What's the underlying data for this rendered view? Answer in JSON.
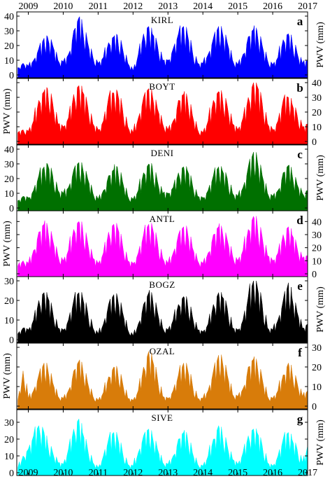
{
  "chart_data": {
    "type": "area",
    "x_range": [
      2009,
      2017
    ],
    "years": [
      "2009",
      "2010",
      "2011",
      "2012",
      "2013",
      "2014",
      "2015",
      "2016",
      "2017"
    ],
    "ylabel": "PWV (mm)",
    "panels": [
      {
        "letter": "a",
        "station": "KIRL",
        "color": "#0000ff",
        "ylim": [
          0,
          40
        ],
        "yticks": [
          0,
          10,
          20,
          30,
          40
        ],
        "ylabel_side": "right",
        "x": [
          2008.7,
          2008.85,
          2009.0,
          2009.15,
          2009.3,
          2009.45,
          2009.55,
          2009.7,
          2009.85,
          2010.0,
          2010.15,
          2010.3,
          2010.45,
          2010.55,
          2010.7,
          2010.85,
          2011.0,
          2011.15,
          2011.3,
          2011.45,
          2011.55,
          2011.7,
          2011.85,
          2012.0,
          2012.15,
          2012.3,
          2012.45,
          2012.55,
          2012.7,
          2012.85,
          2013.0,
          2013.15,
          2013.3,
          2013.45,
          2013.55,
          2013.7,
          2013.85,
          2014.0,
          2014.15,
          2014.3,
          2014.45,
          2014.55,
          2014.7,
          2014.85,
          2015.0,
          2015.15,
          2015.3,
          2015.45,
          2015.55,
          2015.7,
          2015.85,
          2016.0,
          2016.15,
          2016.3,
          2016.45,
          2016.55,
          2016.7,
          2016.85,
          2017.0
        ],
        "y": [
          5,
          8,
          6,
          10,
          18,
          25,
          26,
          20,
          10,
          9,
          14,
          30,
          39,
          33,
          22,
          12,
          8,
          12,
          22,
          26,
          27,
          18,
          8,
          3,
          14,
          28,
          33,
          28,
          20,
          10,
          10,
          18,
          28,
          33,
          29,
          16,
          8,
          8,
          14,
          25,
          33,
          30,
          22,
          10,
          7,
          14,
          26,
          31,
          30,
          20,
          10,
          7,
          12,
          24,
          28,
          24,
          15,
          8,
          10
        ]
      },
      {
        "letter": "b",
        "station": "BOYT",
        "color": "#ff0000",
        "ylim": [
          0,
          40
        ],
        "yticks": [
          0,
          10,
          20,
          30,
          40
        ],
        "ylabel_side": "left",
        "x": [
          2008.7,
          2008.85,
          2009.0,
          2009.15,
          2009.3,
          2009.45,
          2009.55,
          2009.7,
          2009.85,
          2010.0,
          2010.15,
          2010.3,
          2010.45,
          2010.55,
          2010.7,
          2010.85,
          2011.0,
          2011.15,
          2011.3,
          2011.45,
          2011.55,
          2011.7,
          2011.85,
          2012.0,
          2012.15,
          2012.3,
          2012.45,
          2012.55,
          2012.7,
          2012.85,
          2013.0,
          2013.15,
          2013.3,
          2013.45,
          2013.55,
          2013.7,
          2013.85,
          2014.0,
          2014.15,
          2014.3,
          2014.45,
          2014.55,
          2014.7,
          2014.85,
          2015.0,
          2015.15,
          2015.3,
          2015.45,
          2015.55,
          2015.7,
          2015.85,
          2016.0,
          2016.15,
          2016.3,
          2016.45,
          2016.55,
          2016.7,
          2016.85,
          2017.0
        ],
        "y": [
          6,
          8,
          7,
          14,
          28,
          34,
          36,
          26,
          12,
          10,
          16,
          32,
          38,
          34,
          24,
          12,
          8,
          14,
          30,
          33,
          34,
          22,
          10,
          6,
          16,
          30,
          36,
          32,
          22,
          12,
          8,
          14,
          28,
          32,
          30,
          18,
          8,
          6,
          14,
          28,
          34,
          32,
          24,
          12,
          8,
          16,
          30,
          40,
          38,
          26,
          12,
          8,
          14,
          28,
          30,
          26,
          18,
          10,
          12
        ]
      },
      {
        "letter": "c",
        "station": "DENI",
        "color": "#007000",
        "ylim": [
          0,
          40
        ],
        "yticks": [
          0,
          10,
          20,
          30,
          40
        ],
        "ylabel_side": "right",
        "x": [
          2008.7,
          2008.85,
          2009.0,
          2009.15,
          2009.3,
          2009.45,
          2009.55,
          2009.7,
          2009.85,
          2010.0,
          2010.15,
          2010.3,
          2010.45,
          2010.55,
          2010.7,
          2010.85,
          2011.0,
          2011.15,
          2011.3,
          2011.45,
          2011.55,
          2011.7,
          2011.85,
          2012.0,
          2012.15,
          2012.3,
          2012.45,
          2012.55,
          2012.7,
          2012.85,
          2013.0,
          2013.15,
          2013.3,
          2013.45,
          2013.55,
          2013.7,
          2013.85,
          2014.0,
          2014.15,
          2014.3,
          2014.45,
          2014.55,
          2014.7,
          2014.85,
          2015.0,
          2015.15,
          2015.3,
          2015.45,
          2015.55,
          2015.7,
          2015.85,
          2016.0,
          2016.15,
          2016.3,
          2016.45,
          2016.55,
          2016.7,
          2016.85,
          2017.0
        ],
        "y": [
          5,
          8,
          7,
          12,
          22,
          28,
          30,
          22,
          12,
          10,
          14,
          26,
          31,
          28,
          20,
          10,
          6,
          12,
          22,
          26,
          28,
          18,
          8,
          6,
          12,
          24,
          30,
          28,
          18,
          10,
          10,
          14,
          24,
          28,
          26,
          16,
          8,
          7,
          12,
          22,
          28,
          26,
          20,
          10,
          8,
          14,
          28,
          38,
          34,
          22,
          10,
          8,
          12,
          24,
          29,
          24,
          16,
          10,
          12
        ]
      },
      {
        "letter": "d",
        "station": "ANTL",
        "color": "#ff00ff",
        "ylim": [
          0,
          45
        ],
        "yticks": [
          0,
          10,
          20,
          30,
          40
        ],
        "ylabel_side": "left",
        "x": [
          2008.7,
          2008.85,
          2009.0,
          2009.15,
          2009.3,
          2009.45,
          2009.55,
          2009.7,
          2009.85,
          2010.0,
          2010.15,
          2010.3,
          2010.45,
          2010.55,
          2010.7,
          2010.85,
          2011.0,
          2011.15,
          2011.3,
          2011.45,
          2011.55,
          2011.7,
          2011.85,
          2012.0,
          2012.15,
          2012.3,
          2012.45,
          2012.55,
          2012.7,
          2012.85,
          2013.0,
          2013.15,
          2013.3,
          2013.45,
          2013.55,
          2013.7,
          2013.85,
          2014.0,
          2014.15,
          2014.3,
          2014.45,
          2014.55,
          2014.7,
          2014.85,
          2015.0,
          2015.15,
          2015.3,
          2015.45,
          2015.55,
          2015.7,
          2015.85,
          2016.0,
          2016.15,
          2016.3,
          2016.45,
          2016.55,
          2016.7,
          2016.85,
          2017.0
        ],
        "y": [
          6,
          10,
          8,
          18,
          32,
          38,
          36,
          26,
          14,
          10,
          18,
          34,
          40,
          36,
          24,
          12,
          8,
          16,
          32,
          38,
          36,
          22,
          10,
          8,
          16,
          30,
          38,
          36,
          24,
          12,
          8,
          16,
          30,
          36,
          34,
          20,
          10,
          8,
          16,
          30,
          36,
          34,
          26,
          14,
          10,
          18,
          34,
          44,
          40,
          28,
          14,
          10,
          16,
          30,
          36,
          30,
          20,
          12,
          14
        ]
      },
      {
        "letter": "e",
        "station": "BOGZ",
        "color": "#000000",
        "ylim": [
          0,
          30
        ],
        "yticks": [
          0,
          10,
          20,
          30
        ],
        "ylabel_side": "right",
        "x": [
          2008.7,
          2008.85,
          2009.0,
          2009.15,
          2009.3,
          2009.45,
          2009.55,
          2009.7,
          2009.85,
          2010.0,
          2010.15,
          2010.3,
          2010.45,
          2010.55,
          2010.7,
          2010.85,
          2011.0,
          2011.15,
          2011.3,
          2011.45,
          2011.55,
          2011.7,
          2011.85,
          2012.0,
          2012.15,
          2012.3,
          2012.45,
          2012.55,
          2012.7,
          2012.85,
          2013.0,
          2013.15,
          2013.3,
          2013.45,
          2013.55,
          2013.7,
          2013.85,
          2014.0,
          2014.15,
          2014.3,
          2014.45,
          2014.55,
          2014.7,
          2014.85,
          2015.0,
          2015.15,
          2015.3,
          2015.45,
          2015.55,
          2015.7,
          2015.85,
          2016.0,
          2016.15,
          2016.3,
          2016.45,
          2016.55,
          2016.7,
          2016.85,
          2017.0
        ],
        "y": [
          3,
          6,
          5,
          10,
          20,
          24,
          22,
          14,
          6,
          5,
          10,
          20,
          24,
          22,
          14,
          6,
          3,
          8,
          18,
          23,
          22,
          14,
          5,
          2,
          8,
          18,
          24,
          22,
          14,
          6,
          5,
          10,
          18,
          22,
          20,
          12,
          5,
          4,
          8,
          18,
          24,
          22,
          16,
          6,
          5,
          10,
          22,
          30,
          28,
          18,
          6,
          5,
          10,
          20,
          29,
          22,
          14,
          6,
          8
        ]
      },
      {
        "letter": "f",
        "station": "OZAL",
        "color": "#d87c0a",
        "ylim": [
          0,
          30
        ],
        "yticks": [
          0,
          10,
          20,
          30
        ],
        "ylabel_side": "left",
        "x": [
          2008.7,
          2008.85,
          2009.0,
          2009.15,
          2009.3,
          2009.45,
          2009.55,
          2009.7,
          2009.85,
          2010.0,
          2010.15,
          2010.3,
          2010.45,
          2010.55,
          2010.7,
          2010.85,
          2011.0,
          2011.15,
          2011.3,
          2011.45,
          2011.55,
          2011.7,
          2011.85,
          2012.0,
          2012.15,
          2012.3,
          2012.45,
          2012.55,
          2012.7,
          2012.85,
          2013.0,
          2013.15,
          2013.3,
          2013.45,
          2013.55,
          2013.7,
          2013.85,
          2014.0,
          2014.15,
          2014.3,
          2014.45,
          2014.55,
          2014.7,
          2014.85,
          2015.0,
          2015.15,
          2015.3,
          2015.45,
          2015.55,
          2015.7,
          2015.85,
          2016.0,
          2016.15,
          2016.3,
          2016.45,
          2016.55,
          2016.7,
          2016.85,
          2017.0
        ],
        "y": [
          3,
          18,
          4,
          8,
          16,
          22,
          20,
          12,
          5,
          4,
          8,
          18,
          23,
          20,
          12,
          5,
          3,
          7,
          15,
          20,
          19,
          12,
          4,
          3,
          8,
          20,
          28,
          24,
          14,
          5,
          4,
          8,
          16,
          22,
          20,
          11,
          4,
          4,
          8,
          18,
          26,
          24,
          16,
          6,
          5,
          9,
          20,
          24,
          22,
          14,
          5,
          4,
          8,
          16,
          22,
          18,
          12,
          5,
          8
        ]
      },
      {
        "letter": "g",
        "station": "SIVE",
        "color": "#00ffff",
        "ylim": [
          0,
          35
        ],
        "yticks": [
          0,
          10,
          20,
          30
        ],
        "ylabel_side": "right",
        "x": [
          2008.7,
          2008.85,
          2009.0,
          2009.15,
          2009.3,
          2009.45,
          2009.55,
          2009.7,
          2009.85,
          2010.0,
          2010.15,
          2010.3,
          2010.45,
          2010.55,
          2010.7,
          2010.85,
          2011.0,
          2011.15,
          2011.3,
          2011.45,
          2011.55,
          2011.7,
          2011.85,
          2012.0,
          2012.15,
          2012.3,
          2012.45,
          2012.55,
          2012.7,
          2012.85,
          2013.0,
          2013.15,
          2013.3,
          2013.45,
          2013.55,
          2013.7,
          2013.85,
          2014.0,
          2014.15,
          2014.3,
          2014.45,
          2014.55,
          2014.7,
          2014.85,
          2015.0,
          2015.15,
          2015.3,
          2015.45,
          2015.55,
          2015.7,
          2015.85,
          2016.0,
          2016.15,
          2016.3,
          2016.45,
          2016.55,
          2016.7,
          2016.85,
          2017.0
        ],
        "y": [
          3,
          10,
          14,
          22,
          28,
          24,
          18,
          12,
          6,
          5,
          14,
          26,
          32,
          24,
          14,
          6,
          3,
          10,
          20,
          24,
          22,
          12,
          5,
          4,
          12,
          22,
          26,
          22,
          14,
          6,
          5,
          10,
          20,
          24,
          22,
          12,
          5,
          4,
          10,
          20,
          28,
          24,
          16,
          8,
          5,
          12,
          22,
          26,
          24,
          16,
          6,
          4,
          10,
          20,
          24,
          20,
          14,
          6,
          16
        ]
      }
    ]
  }
}
